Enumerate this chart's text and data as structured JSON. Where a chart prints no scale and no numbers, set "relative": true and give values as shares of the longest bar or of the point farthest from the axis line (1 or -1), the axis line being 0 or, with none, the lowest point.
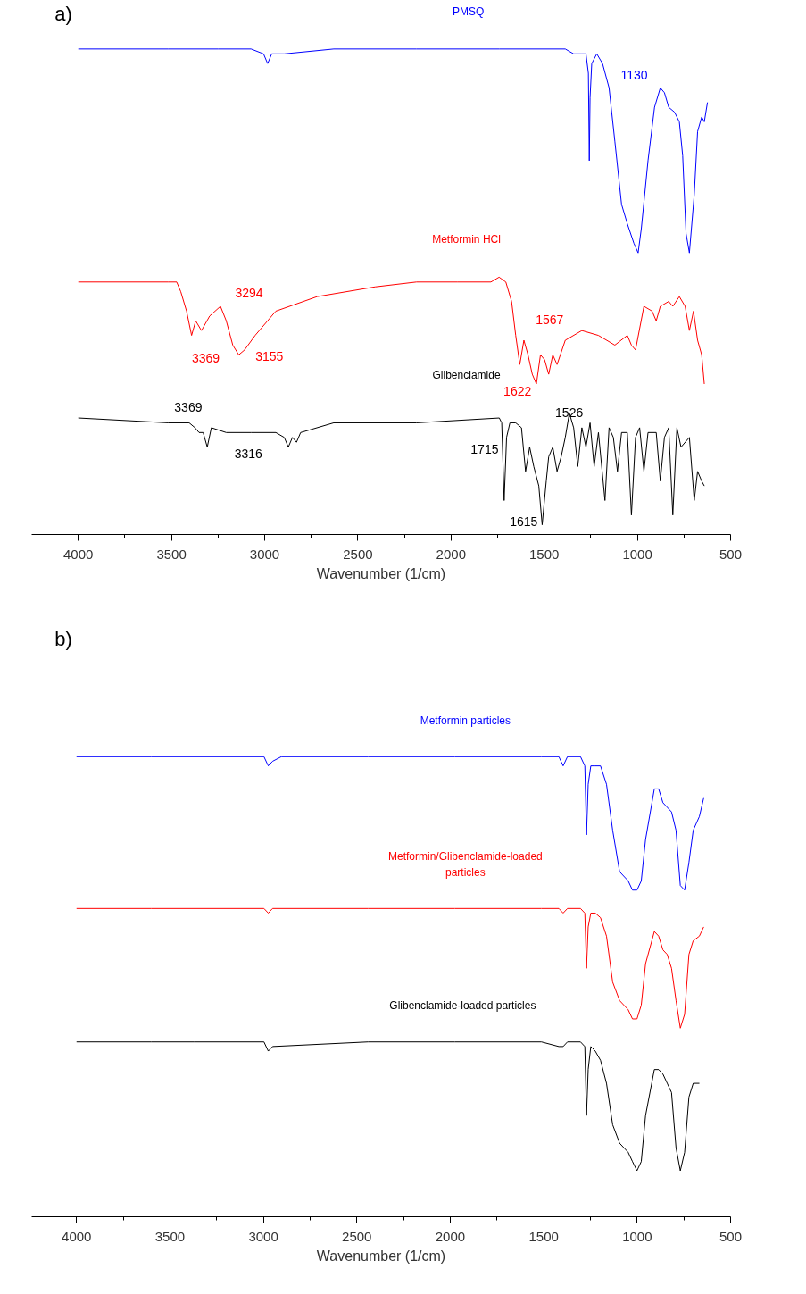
{
  "chart_data": [
    {
      "type": "line",
      "title": "a)",
      "xlabel": "Wavenumber (1/cm)",
      "relative": true,
      "tick_labels": "x",
      "grid": false,
      "xlim": [
        4250,
        500
      ],
      "xticks": [
        4000,
        {
          "value": 3750,
          "label": null
        },
        3500,
        {
          "value": 3250,
          "label": null
        },
        3000,
        {
          "value": 2750,
          "label": null
        },
        2500,
        {
          "value": 2250,
          "label": null
        },
        2000,
        {
          "value": 1750,
          "label": null
        },
        1500,
        {
          "value": 1250,
          "label": null
        },
        1000,
        {
          "value": 750,
          "label": null
        },
        500
      ],
      "series": [
        {
          "name": "PMSQ",
          "color": "#0000ff",
          "x": [
            4000,
            3516,
            3250,
            3073,
            3006,
            2984,
            2962,
            2895,
            2629,
            2185,
            1741,
            1387,
            1342,
            1298,
            1276,
            1263,
            1258,
            1254,
            1245,
            1218,
            1187,
            1152,
            1121,
            1085,
            1054,
            1019,
            996,
            979,
            943,
            908,
            877,
            855,
            832,
            801,
            775,
            757,
            739,
            721,
            695,
            677,
            655,
            641,
            624
          ],
          "values": [
            1.0,
            1.0,
            1.0,
            1.0,
            0.99,
            0.97,
            0.99,
            0.99,
            1.0,
            1.0,
            1.0,
            1.0,
            0.99,
            0.99,
            0.99,
            0.95,
            0.77,
            0.9,
            0.97,
            0.99,
            0.97,
            0.92,
            0.81,
            0.68,
            0.64,
            0.6,
            0.58,
            0.63,
            0.77,
            0.88,
            0.92,
            0.91,
            0.88,
            0.87,
            0.85,
            0.78,
            0.62,
            0.58,
            0.7,
            0.83,
            0.86,
            0.85,
            0.89
          ]
        },
        {
          "name": "Metformin HCl",
          "color": "#ff0000",
          "x": [
            4000,
            3516,
            3472,
            3450,
            3419,
            3392,
            3370,
            3339,
            3295,
            3237,
            3206,
            3171,
            3139,
            3108,
            3051,
            2940,
            2718,
            2407,
            2185,
            1964,
            1786,
            1742,
            1706,
            1675,
            1653,
            1631,
            1609,
            1587,
            1564,
            1542,
            1520,
            1498,
            1476,
            1454,
            1431,
            1387,
            1298,
            1209,
            1121,
            1054,
            1032,
            1010,
            965,
            921,
            899,
            877,
            832,
            810,
            775,
            744,
            721,
            699,
            677,
            655,
            641
          ],
          "values": [
            0.52,
            0.52,
            0.52,
            0.5,
            0.46,
            0.41,
            0.44,
            0.42,
            0.45,
            0.47,
            0.44,
            0.39,
            0.37,
            0.38,
            0.41,
            0.46,
            0.49,
            0.51,
            0.52,
            0.52,
            0.52,
            0.53,
            0.52,
            0.48,
            0.41,
            0.35,
            0.4,
            0.37,
            0.33,
            0.31,
            0.37,
            0.36,
            0.33,
            0.37,
            0.35,
            0.4,
            0.42,
            0.41,
            0.39,
            0.41,
            0.39,
            0.38,
            0.47,
            0.46,
            0.44,
            0.47,
            0.48,
            0.47,
            0.49,
            0.47,
            0.42,
            0.46,
            0.4,
            0.37,
            0.31
          ]
        },
        {
          "name": "Glibenclamide",
          "color": "#000000",
          "x": [
            4000,
            3516,
            3405,
            3374,
            3352,
            3330,
            3308,
            3286,
            3206,
            3073,
            2940,
            2895,
            2873,
            2851,
            2829,
            2807,
            2629,
            2185,
            1741,
            1728,
            1715,
            1702,
            1684,
            1653,
            1622,
            1600,
            1578,
            1556,
            1529,
            1511,
            1489,
            1476,
            1454,
            1431,
            1409,
            1387,
            1365,
            1342,
            1320,
            1298,
            1276,
            1254,
            1232,
            1209,
            1174,
            1152,
            1129,
            1107,
            1085,
            1054,
            1032,
            1010,
            988,
            965,
            943,
            899,
            877,
            855,
            832,
            810,
            788,
            766,
            721,
            695,
            677,
            655,
            641
          ],
          "values": [
            0.24,
            0.23,
            0.23,
            0.22,
            0.21,
            0.21,
            0.18,
            0.22,
            0.21,
            0.21,
            0.21,
            0.2,
            0.18,
            0.2,
            0.19,
            0.21,
            0.23,
            0.23,
            0.24,
            0.23,
            0.07,
            0.2,
            0.23,
            0.23,
            0.22,
            0.13,
            0.18,
            0.14,
            0.1,
            0.02,
            0.11,
            0.16,
            0.18,
            0.13,
            0.16,
            0.2,
            0.25,
            0.22,
            0.14,
            0.22,
            0.18,
            0.23,
            0.14,
            0.21,
            0.07,
            0.22,
            0.2,
            0.13,
            0.21,
            0.21,
            0.04,
            0.2,
            0.22,
            0.13,
            0.21,
            0.21,
            0.11,
            0.2,
            0.22,
            0.04,
            0.22,
            0.18,
            0.2,
            0.07,
            0.13,
            0.11,
            0.1
          ]
        }
      ],
      "annotations": [
        "1130",
        "3294",
        "3369",
        "3155",
        "1567",
        "1622",
        "3369",
        "3316",
        "1715",
        "1526",
        "1615"
      ]
    },
    {
      "type": "line",
      "title": "b)",
      "xlabel": "Wavenumber (1/cm)",
      "relative": true,
      "tick_labels": "x",
      "grid": false,
      "xlim": [
        4240,
        500
      ],
      "xticks": [
        4000,
        {
          "value": 3750,
          "label": null
        },
        3500,
        {
          "value": 3250,
          "label": null
        },
        3000,
        {
          "value": 2750,
          "label": null
        },
        2500,
        {
          "value": 2250,
          "label": null
        },
        2000,
        {
          "value": 1750,
          "label": null
        },
        1500,
        {
          "value": 1250,
          "label": null
        },
        1000,
        {
          "value": 750,
          "label": null
        },
        500
      ],
      "series": [
        {
          "name": "Metformin particles",
          "color": "#0000ff",
          "x": [
            4000,
            3601,
            2997,
            2974,
            2951,
            2904,
            2440,
            1976,
            1512,
            1419,
            1396,
            1373,
            1303,
            1280,
            1271,
            1262,
            1248,
            1224,
            1196,
            1164,
            1131,
            1094,
            1048,
            1025,
            1001,
            978,
            955,
            908,
            885,
            862,
            839,
            816,
            792,
            769,
            746,
            723,
            700,
            667,
            644
          ],
          "values": [
            1.0,
            1.0,
            1.0,
            0.98,
            0.99,
            1.0,
            1.0,
            1.0,
            1.0,
            1.0,
            0.98,
            1.0,
            1.0,
            0.98,
            0.83,
            0.94,
            0.98,
            0.98,
            0.98,
            0.94,
            0.84,
            0.75,
            0.73,
            0.71,
            0.71,
            0.73,
            0.82,
            0.93,
            0.93,
            0.9,
            0.89,
            0.88,
            0.84,
            0.72,
            0.71,
            0.77,
            0.84,
            0.87,
            0.91
          ]
        },
        {
          "name": "Metformin/Glibenclamide-loaded particles",
          "color": "#ff0000",
          "x": [
            4000,
            3601,
            2997,
            2974,
            2951,
            2440,
            1976,
            1512,
            1419,
            1396,
            1373,
            1303,
            1280,
            1271,
            1262,
            1248,
            1224,
            1196,
            1164,
            1131,
            1094,
            1048,
            1025,
            1001,
            978,
            955,
            908,
            885,
            862,
            839,
            816,
            792,
            769,
            746,
            723,
            700,
            667,
            644
          ],
          "values": [
            0.67,
            0.67,
            0.67,
            0.66,
            0.67,
            0.67,
            0.67,
            0.67,
            0.67,
            0.66,
            0.67,
            0.67,
            0.66,
            0.54,
            0.63,
            0.66,
            0.66,
            0.65,
            0.61,
            0.51,
            0.47,
            0.45,
            0.43,
            0.43,
            0.46,
            0.55,
            0.62,
            0.61,
            0.58,
            0.57,
            0.54,
            0.47,
            0.41,
            0.44,
            0.57,
            0.6,
            0.61,
            0.63
          ]
        },
        {
          "name": "Glibenclamide-loaded particles",
          "color": "#000000",
          "x": [
            4000,
            3601,
            3369,
            2997,
            2974,
            2951,
            2440,
            1976,
            1512,
            1419,
            1396,
            1373,
            1303,
            1280,
            1271,
            1262,
            1248,
            1224,
            1196,
            1164,
            1131,
            1094,
            1048,
            1025,
            1001,
            978,
            955,
            908,
            885,
            862,
            839,
            816,
            792,
            769,
            746,
            723,
            700,
            667
          ],
          "values": [
            0.38,
            0.38,
            0.38,
            0.38,
            0.36,
            0.37,
            0.38,
            0.38,
            0.38,
            0.37,
            0.37,
            0.38,
            0.38,
            0.37,
            0.22,
            0.32,
            0.37,
            0.36,
            0.34,
            0.29,
            0.2,
            0.16,
            0.14,
            0.12,
            0.1,
            0.12,
            0.22,
            0.32,
            0.32,
            0.31,
            0.29,
            0.27,
            0.15,
            0.1,
            0.14,
            0.26,
            0.29,
            0.29
          ]
        }
      ]
    }
  ]
}
